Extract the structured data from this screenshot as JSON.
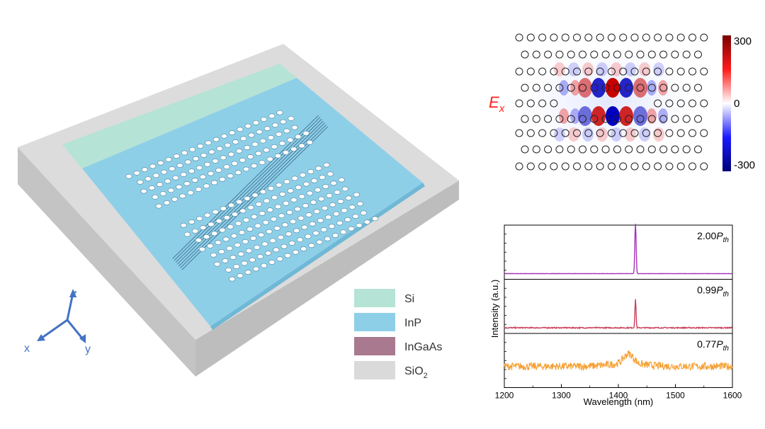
{
  "coordinate_axes": {
    "z": "z",
    "x": "x",
    "y": "y"
  },
  "legend": [
    {
      "label": "Si",
      "sub": "",
      "color": "#b5e3d6"
    },
    {
      "label": "InP",
      "sub": "",
      "color": "#8ecfe8"
    },
    {
      "label": "InGaAs",
      "sub": "",
      "color": "#a8798f"
    },
    {
      "label": "SiO",
      "sub": "2",
      "color": "#dadada"
    }
  ],
  "field_map": {
    "label_main": "E",
    "label_sub": "x",
    "colorbar_ticks": [
      "300",
      "0",
      "-300"
    ]
  },
  "chart_data": {
    "type": "line",
    "xlabel": "Wavelength (nm)",
    "ylabel": "Intensity (a.u.)",
    "xlim": [
      1200,
      1600
    ],
    "xticks": [
      "1200",
      "1300",
      "1400",
      "1500",
      "1600"
    ],
    "series": [
      {
        "name": "2.00P_th",
        "coef": "2.00",
        "sym": "P",
        "sub": "th",
        "color": "#a534b8",
        "peak_nm": 1430,
        "noise": 0.004,
        "peak_height": 0.92,
        "peak_width_nm": 1.6
      },
      {
        "name": "0.99P_th",
        "coef": "0.99",
        "sym": "P",
        "sub": "th",
        "color": "#c9415b",
        "peak_nm": 1430,
        "noise": 0.02,
        "peak_height": 0.52,
        "peak_width_nm": 1.4
      },
      {
        "name": "0.77P_th",
        "coef": "0.77",
        "sym": "P",
        "sub": "th",
        "color": "#f5a033",
        "peak_nm": 1418,
        "noise": 0.14,
        "peak_height": 0.18,
        "peak_width_nm": 12
      }
    ]
  }
}
